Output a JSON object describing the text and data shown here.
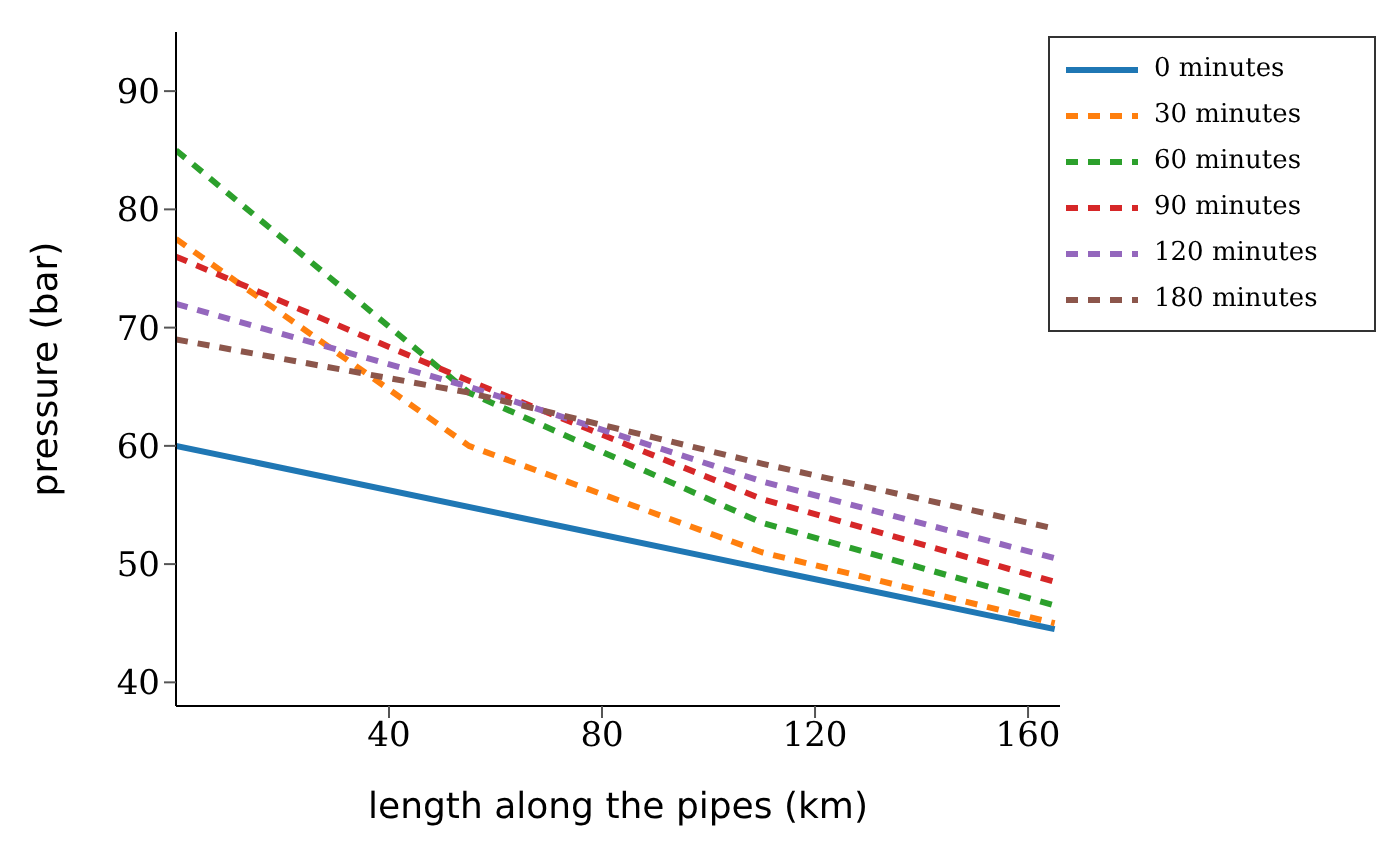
{
  "chart_data": {
    "type": "line",
    "xlabel": "length along the pipes (km)",
    "ylabel": "pressure (bar)",
    "x": [
      0,
      55,
      110,
      165
    ],
    "series": [
      {
        "name": "0 minutes",
        "color": "#1f77b4",
        "line_style": "solid",
        "x": [
          0,
          165
        ],
        "values": [
          60,
          44.5
        ]
      },
      {
        "name": "30 minutes",
        "color": "#ff7f0e",
        "line_style": "dashed",
        "values": [
          77.5,
          60,
          51,
          45
        ]
      },
      {
        "name": "60 minutes",
        "color": "#2ca02c",
        "line_style": "dashed",
        "values": [
          85,
          64.5,
          53.5,
          46.5
        ]
      },
      {
        "name": "90 minutes",
        "color": "#d62728",
        "line_style": "dashed",
        "values": [
          76,
          65.5,
          55.5,
          48.5
        ]
      },
      {
        "name": "120 minutes",
        "color": "#9467bd",
        "line_style": "dashed",
        "values": [
          72,
          65,
          57,
          50.5
        ]
      },
      {
        "name": "180 minutes",
        "color": "#8c564b",
        "line_style": "dashed",
        "values": [
          69,
          64.5,
          58.5,
          53
        ]
      }
    ],
    "xlim": [
      0,
      166
    ],
    "xticks": [
      40,
      80,
      120,
      160
    ],
    "ylim": [
      38,
      95
    ],
    "yticks": [
      40,
      50,
      60,
      70,
      80,
      90
    ],
    "grid": false,
    "legend": "top right",
    "marker": "none"
  }
}
